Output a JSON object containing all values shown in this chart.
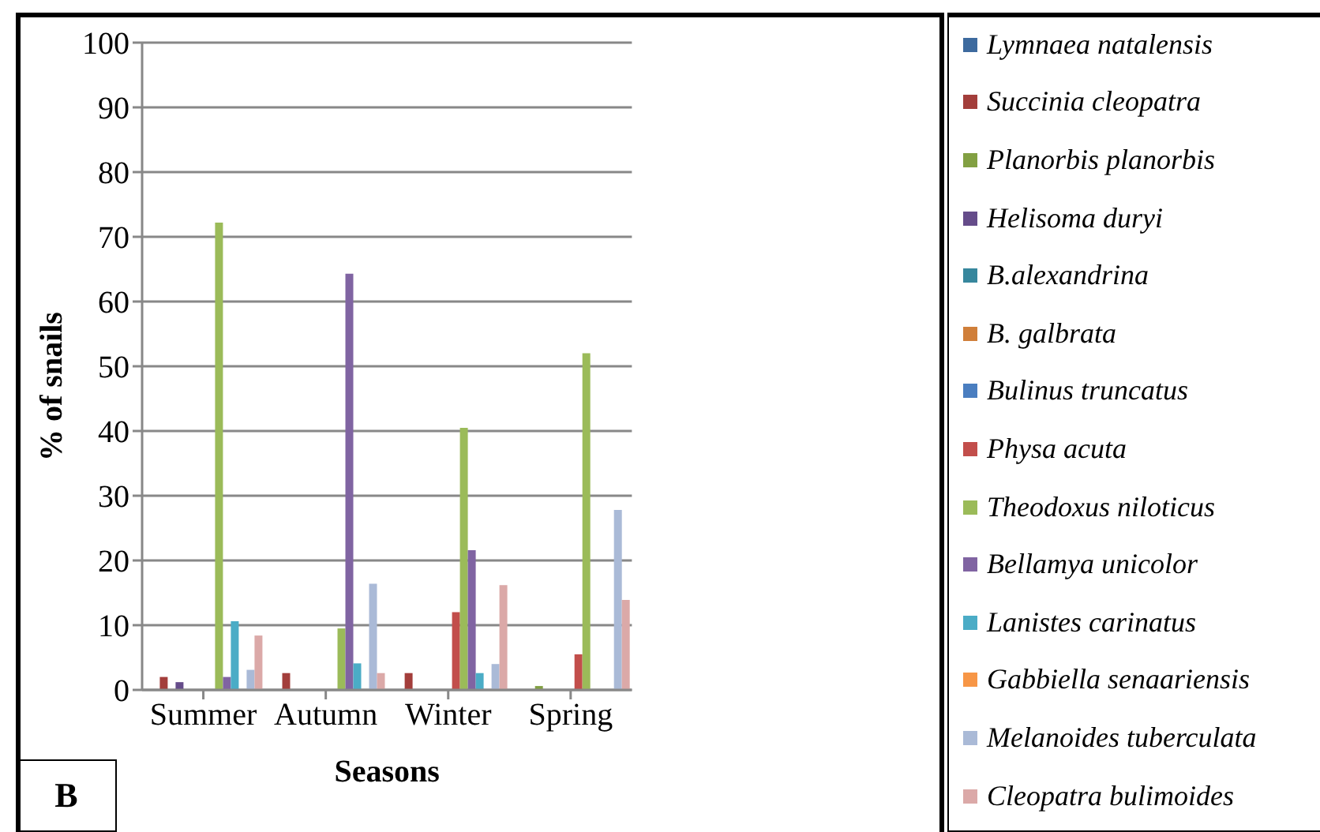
{
  "chart_data": {
    "type": "bar",
    "xlabel": "Seasons",
    "ylabel": "% of snails",
    "categories": [
      "Summer",
      "Autumn",
      "Winter",
      "Spring"
    ],
    "ylim": [
      0,
      100
    ],
    "yticks": [
      0,
      10,
      20,
      30,
      40,
      50,
      60,
      70,
      80,
      90,
      100
    ],
    "grid": "y",
    "legend": "right",
    "annotations": [
      "B"
    ],
    "series": [
      {
        "name": "Lymnaea natalensis",
        "color": "#3d6a9e",
        "values": [
          0,
          0,
          0,
          0
        ]
      },
      {
        "name": "Succinia cleopatra",
        "color": "#a33e3b",
        "values": [
          2,
          2.6,
          2.6,
          0
        ]
      },
      {
        "name": "Planorbis planorbis",
        "color": "#82a042",
        "values": [
          0,
          0,
          0,
          0.6
        ]
      },
      {
        "name": "Helisoma duryi",
        "color": "#654c8a",
        "values": [
          1.2,
          0,
          0,
          0
        ]
      },
      {
        "name": "B.alexandrina",
        "color": "#37879d",
        "values": [
          0,
          0,
          0,
          0
        ]
      },
      {
        "name": "B. galbrata",
        "color": "#d07f3a",
        "values": [
          0,
          0,
          0,
          0
        ]
      },
      {
        "name": "Bulinus truncatus",
        "color": "#4a7ec0",
        "values": [
          0,
          0,
          0,
          0
        ]
      },
      {
        "name": "Physa acuta",
        "color": "#c24e4b",
        "values": [
          0,
          0,
          12,
          5.5
        ]
      },
      {
        "name": "Theodoxus niloticus",
        "color": "#9bbb59",
        "values": [
          72.2,
          9.5,
          40.5,
          52
        ]
      },
      {
        "name": "Bellamya unicolor",
        "color": "#8064a2",
        "values": [
          2,
          64.3,
          21.6,
          0
        ]
      },
      {
        "name": "Lanistes carinatus",
        "color": "#4bacc6",
        "values": [
          10.6,
          4.1,
          2.6,
          0
        ]
      },
      {
        "name": "Gabbiella senaariensis",
        "color": "#f79646",
        "values": [
          0,
          0,
          0,
          0
        ]
      },
      {
        "name": "Melanoides tuberculata",
        "color": "#aabad7",
        "values": [
          3.1,
          16.4,
          4,
          27.8
        ]
      },
      {
        "name": "Cleopatra bulimoides",
        "color": "#dba9a8",
        "values": [
          8.4,
          2.6,
          16.2,
          13.9
        ]
      }
    ]
  }
}
